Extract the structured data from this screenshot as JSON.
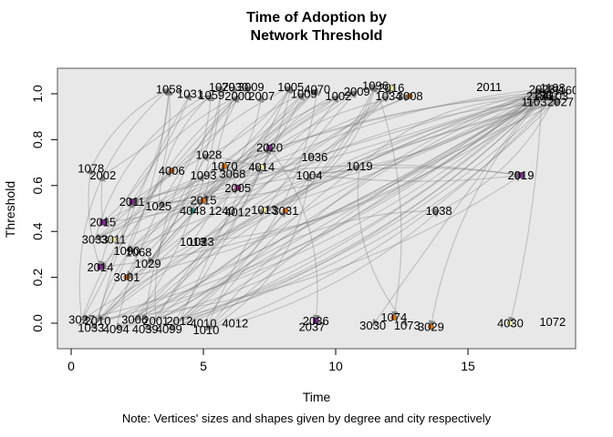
{
  "figure": {
    "title_line1": "Time of Adoption by",
    "title_line2": "Network Threshold",
    "xlabel": "Time",
    "ylabel": "Threshold",
    "note": "Note: Vertices' sizes and shapes given by degree and city respectively"
  },
  "chart_data": {
    "type": "scatter",
    "subtype": "network-graph-over-axes",
    "title": "Time of Adoption by Network Threshold",
    "xlabel": "Time",
    "ylabel": "Threshold",
    "note": "Note: Vertices' sizes and shapes given by degree and city respectively",
    "xlim": [
      -0.5,
      19.1
    ],
    "ylim": [
      -0.11,
      1.11
    ],
    "x_ticks": [
      0,
      5,
      10,
      15
    ],
    "y_ticks": [
      "0.0",
      "0.2",
      "0.4",
      "0.6",
      "0.8",
      "1.0"
    ],
    "grid": false,
    "legend": "none",
    "plot_bg": "#e8e8e8",
    "edge_color": "rgba(110,110,110,0.32)",
    "arrow_color": "#757575",
    "palette": {
      "orange": "#e0720e",
      "purple": "#7b2d8b",
      "magenta": "#b0309a",
      "yellow": "#f5f0a0",
      "teal": "#2e9e8e"
    },
    "nodes": [
      {
        "id": "1058",
        "t": 3.7,
        "th": 1.02,
        "mk": null
      },
      {
        "id": "1031",
        "t": 4.5,
        "th": 1.0,
        "mk": null
      },
      {
        "id": "1059",
        "t": 5.3,
        "th": 0.995,
        "mk": null
      },
      {
        "id": "1079",
        "t": 5.7,
        "th": 1.03,
        "mk": null
      },
      {
        "id": "2030",
        "t": 6.2,
        "th": 1.03,
        "mk": null
      },
      {
        "id": "2000",
        "t": 6.3,
        "th": 0.99,
        "mk": null
      },
      {
        "id": "3009",
        "t": 6.8,
        "th": 1.03,
        "mk": null
      },
      {
        "id": "2007",
        "t": 7.2,
        "th": 0.99,
        "mk": null
      },
      {
        "id": "1005",
        "t": 8.3,
        "th": 1.03,
        "mk": null
      },
      {
        "id": "1009",
        "t": 8.8,
        "th": 1.0,
        "mk": null
      },
      {
        "id": "4070",
        "t": 9.3,
        "th": 1.02,
        "mk": null
      },
      {
        "id": "1002",
        "t": 10.1,
        "th": 0.99,
        "mk": null
      },
      {
        "id": "2009",
        "t": 10.8,
        "th": 1.01,
        "mk": null
      },
      {
        "id": "1096",
        "t": 11.5,
        "th": 1.035,
        "mk": null
      },
      {
        "id": "2016",
        "t": 12.1,
        "th": 1.025,
        "mk": "yellow"
      },
      {
        "id": "1034",
        "t": 12.0,
        "th": 0.99,
        "mk": null
      },
      {
        "id": "3008",
        "t": 12.8,
        "th": 0.99,
        "mk": "orange"
      },
      {
        "id": "2011",
        "t": 15.8,
        "th": 1.03,
        "mk": null
      },
      {
        "id": "2023",
        "t": 17.8,
        "th": 1.02,
        "mk": null
      },
      {
        "id": "1108",
        "t": 18.2,
        "th": 1.025,
        "mk": null
      },
      {
        "id": "2186",
        "t": 17.7,
        "th": 0.99,
        "mk": null
      },
      {
        "id": "4103",
        "t": 18.3,
        "th": 0.99,
        "mk": null
      },
      {
        "id": "2027",
        "t": 18.5,
        "th": 0.965,
        "mk": null
      },
      {
        "id": "1103",
        "t": 17.5,
        "th": 0.965,
        "mk": null
      },
      {
        "id": "2117",
        "t": 18.0,
        "th": 1.0,
        "mk": null
      },
      {
        "id": "1160",
        "t": 18.7,
        "th": 1.015,
        "mk": null
      },
      {
        "id": "1028",
        "t": 5.2,
        "th": 0.735,
        "mk": null
      },
      {
        "id": "2020",
        "t": 7.5,
        "th": 0.765,
        "mk": "purple"
      },
      {
        "id": "1036",
        "t": 9.2,
        "th": 0.725,
        "mk": null
      },
      {
        "id": "1078",
        "t": 0.75,
        "th": 0.675,
        "mk": null
      },
      {
        "id": "2002",
        "t": 1.2,
        "th": 0.645,
        "mk": null
      },
      {
        "id": "4006",
        "t": 3.8,
        "th": 0.665,
        "mk": "orange"
      },
      {
        "id": "1093",
        "t": 5.0,
        "th": 0.645,
        "mk": null
      },
      {
        "id": "1070",
        "t": 5.8,
        "th": 0.685,
        "mk": "orange"
      },
      {
        "id": "3068",
        "t": 6.1,
        "th": 0.65,
        "mk": null
      },
      {
        "id": "4014",
        "t": 7.2,
        "th": 0.68,
        "mk": "yellow"
      },
      {
        "id": "1004",
        "t": 9.0,
        "th": 0.645,
        "mk": null
      },
      {
        "id": "1019",
        "t": 10.9,
        "th": 0.685,
        "mk": null
      },
      {
        "id": "2019",
        "t": 17.0,
        "th": 0.645,
        "mk": "purple"
      },
      {
        "id": "2005",
        "t": 6.3,
        "th": 0.59,
        "mk": "magenta"
      },
      {
        "id": "1038",
        "t": 13.9,
        "th": 0.49,
        "mk": null
      },
      {
        "id": "2011",
        "t": 2.3,
        "th": 0.53,
        "mk": "purple"
      },
      {
        "id": "1025",
        "t": 3.3,
        "th": 0.51,
        "mk": null
      },
      {
        "id": "2015",
        "t": 5.0,
        "th": 0.535,
        "mk": "orange"
      },
      {
        "id": "4048",
        "t": 4.6,
        "th": 0.49,
        "mk": "teal"
      },
      {
        "id": "1240",
        "t": 5.7,
        "th": 0.49,
        "mk": null
      },
      {
        "id": "4012",
        "t": 6.3,
        "th": 0.485,
        "mk": null
      },
      {
        "id": "1013",
        "t": 7.3,
        "th": 0.495,
        "mk": "yellow"
      },
      {
        "id": "3031",
        "t": 8.1,
        "th": 0.49,
        "mk": "orange"
      },
      {
        "id": "2015",
        "t": 1.2,
        "th": 0.44,
        "mk": "purple"
      },
      {
        "id": "3033",
        "t": 0.9,
        "th": 0.365,
        "mk": null
      },
      {
        "id": "3011",
        "t": 1.6,
        "th": 0.365,
        "mk": "yellow"
      },
      {
        "id": "1013",
        "t": 4.6,
        "th": 0.355,
        "mk": null
      },
      {
        "id": "1023",
        "t": 4.9,
        "th": 0.355,
        "mk": null
      },
      {
        "id": "1090",
        "t": 2.1,
        "th": 0.315,
        "mk": null
      },
      {
        "id": "1068",
        "t": 2.55,
        "th": 0.31,
        "mk": null
      },
      {
        "id": "2014",
        "t": 1.1,
        "th": 0.245,
        "mk": "purple"
      },
      {
        "id": "1029",
        "t": 2.9,
        "th": 0.26,
        "mk": null
      },
      {
        "id": "3001",
        "t": 2.1,
        "th": 0.2,
        "mk": "orange"
      },
      {
        "id": "3027",
        "t": 0.4,
        "th": 0.015,
        "mk": null
      },
      {
        "id": "2010",
        "t": 1.0,
        "th": 0.01,
        "mk": null
      },
      {
        "id": "3006",
        "t": 2.4,
        "th": 0.015,
        "mk": null
      },
      {
        "id": "2001",
        "t": 3.2,
        "th": 0.01,
        "mk": null
      },
      {
        "id": "2012",
        "t": 4.1,
        "th": 0.01,
        "mk": null
      },
      {
        "id": "1033",
        "t": 0.75,
        "th": -0.02,
        "mk": null
      },
      {
        "id": "4094",
        "t": 1.7,
        "th": -0.025,
        "mk": null
      },
      {
        "id": "4039",
        "t": 2.8,
        "th": -0.025,
        "mk": null
      },
      {
        "id": "4099",
        "t": 3.7,
        "th": -0.025,
        "mk": null
      },
      {
        "id": "1010",
        "t": 5.1,
        "th": -0.03,
        "mk": null
      },
      {
        "id": "4010",
        "t": 5.0,
        "th": 0.0,
        "mk": null
      },
      {
        "id": "4012",
        "t": 6.2,
        "th": 0.0,
        "mk": null
      },
      {
        "id": "2036",
        "t": 9.25,
        "th": 0.01,
        "mk": "purple"
      },
      {
        "id": "2037",
        "t": 9.1,
        "th": -0.015,
        "mk": null
      },
      {
        "id": "3030",
        "t": 11.4,
        "th": -0.01,
        "mk": null
      },
      {
        "id": "1074",
        "t": 12.2,
        "th": 0.025,
        "mk": "orange"
      },
      {
        "id": "1073",
        "t": 12.7,
        "th": -0.01,
        "mk": null
      },
      {
        "id": "3029",
        "t": 13.6,
        "th": -0.015,
        "mk": "orange"
      },
      {
        "id": "4030",
        "t": 16.6,
        "th": 0.0,
        "mk": "yellow"
      },
      {
        "id": "1072",
        "t": 18.2,
        "th": 0.005,
        "mk": null
      }
    ],
    "edges": [
      [
        59,
        0
      ],
      [
        60,
        1
      ],
      [
        61,
        3
      ],
      [
        62,
        5
      ],
      [
        63,
        8
      ],
      [
        64,
        2
      ],
      [
        65,
        6
      ],
      [
        66,
        9
      ],
      [
        67,
        10
      ],
      [
        68,
        12
      ],
      [
        64,
        0
      ],
      [
        59,
        8
      ],
      [
        60,
        10
      ],
      [
        61,
        13
      ],
      [
        62,
        16
      ],
      [
        63,
        18
      ],
      [
        65,
        20
      ],
      [
        66,
        22
      ],
      [
        67,
        24
      ],
      [
        68,
        19
      ],
      [
        59,
        18
      ],
      [
        60,
        20
      ],
      [
        61,
        21
      ],
      [
        62,
        23
      ],
      [
        63,
        25
      ],
      [
        64,
        22
      ],
      [
        65,
        19
      ],
      [
        66,
        24
      ],
      [
        67,
        18
      ],
      [
        68,
        21
      ],
      [
        18,
        41
      ],
      [
        19,
        42
      ],
      [
        20,
        50
      ],
      [
        21,
        56
      ],
      [
        22,
        54
      ],
      [
        23,
        57
      ],
      [
        24,
        58
      ],
      [
        25,
        49
      ],
      [
        18,
        59
      ],
      [
        19,
        64
      ],
      [
        20,
        65
      ],
      [
        21,
        66
      ],
      [
        22,
        61
      ],
      [
        23,
        60
      ],
      [
        24,
        67
      ],
      [
        25,
        68
      ],
      [
        18,
        53
      ],
      [
        19,
        47
      ],
      [
        41,
        0
      ],
      [
        42,
        2
      ],
      [
        43,
        4
      ],
      [
        44,
        7
      ],
      [
        45,
        9
      ],
      [
        46,
        11
      ],
      [
        47,
        13
      ],
      [
        48,
        15
      ],
      [
        49,
        1
      ],
      [
        50,
        3
      ],
      [
        51,
        5
      ],
      [
        53,
        8
      ],
      [
        54,
        6
      ],
      [
        55,
        10
      ],
      [
        56,
        0
      ],
      [
        57,
        12
      ],
      [
        58,
        14
      ],
      [
        52,
        16
      ],
      [
        41,
        26
      ],
      [
        42,
        27
      ],
      [
        43,
        28
      ],
      [
        50,
        31
      ],
      [
        51,
        32
      ],
      [
        56,
        29
      ],
      [
        57,
        33
      ],
      [
        58,
        35
      ],
      [
        49,
        30
      ],
      [
        26,
        8
      ],
      [
        27,
        13
      ],
      [
        28,
        18
      ],
      [
        31,
        5
      ],
      [
        32,
        9
      ],
      [
        33,
        11
      ],
      [
        34,
        14
      ],
      [
        35,
        19
      ],
      [
        36,
        20
      ],
      [
        37,
        22
      ],
      [
        39,
        12
      ],
      [
        40,
        21
      ],
      [
        29,
        0
      ],
      [
        30,
        2
      ],
      [
        59,
        38
      ],
      [
        41,
        38
      ],
      [
        26,
        38
      ],
      [
        50,
        38
      ],
      [
        18,
        77
      ],
      [
        19,
        76
      ],
      [
        27,
        71
      ],
      [
        20,
        73
      ],
      [
        37,
        75
      ],
      [
        13,
        74
      ],
      [
        59,
        41
      ],
      [
        60,
        43
      ],
      [
        61,
        47
      ],
      [
        62,
        48
      ],
      [
        63,
        40
      ],
      [
        64,
        39
      ],
      [
        65,
        27
      ],
      [
        66,
        26
      ],
      [
        67,
        35
      ],
      [
        68,
        36
      ],
      [
        69,
        37
      ],
      [
        70,
        40
      ],
      [
        8,
        41
      ],
      [
        10,
        42
      ],
      [
        12,
        43
      ],
      [
        14,
        49
      ],
      [
        16,
        50
      ],
      [
        5,
        56
      ],
      [
        3,
        57
      ],
      [
        11,
        58
      ],
      [
        13,
        53
      ],
      [
        9,
        54
      ]
    ]
  }
}
